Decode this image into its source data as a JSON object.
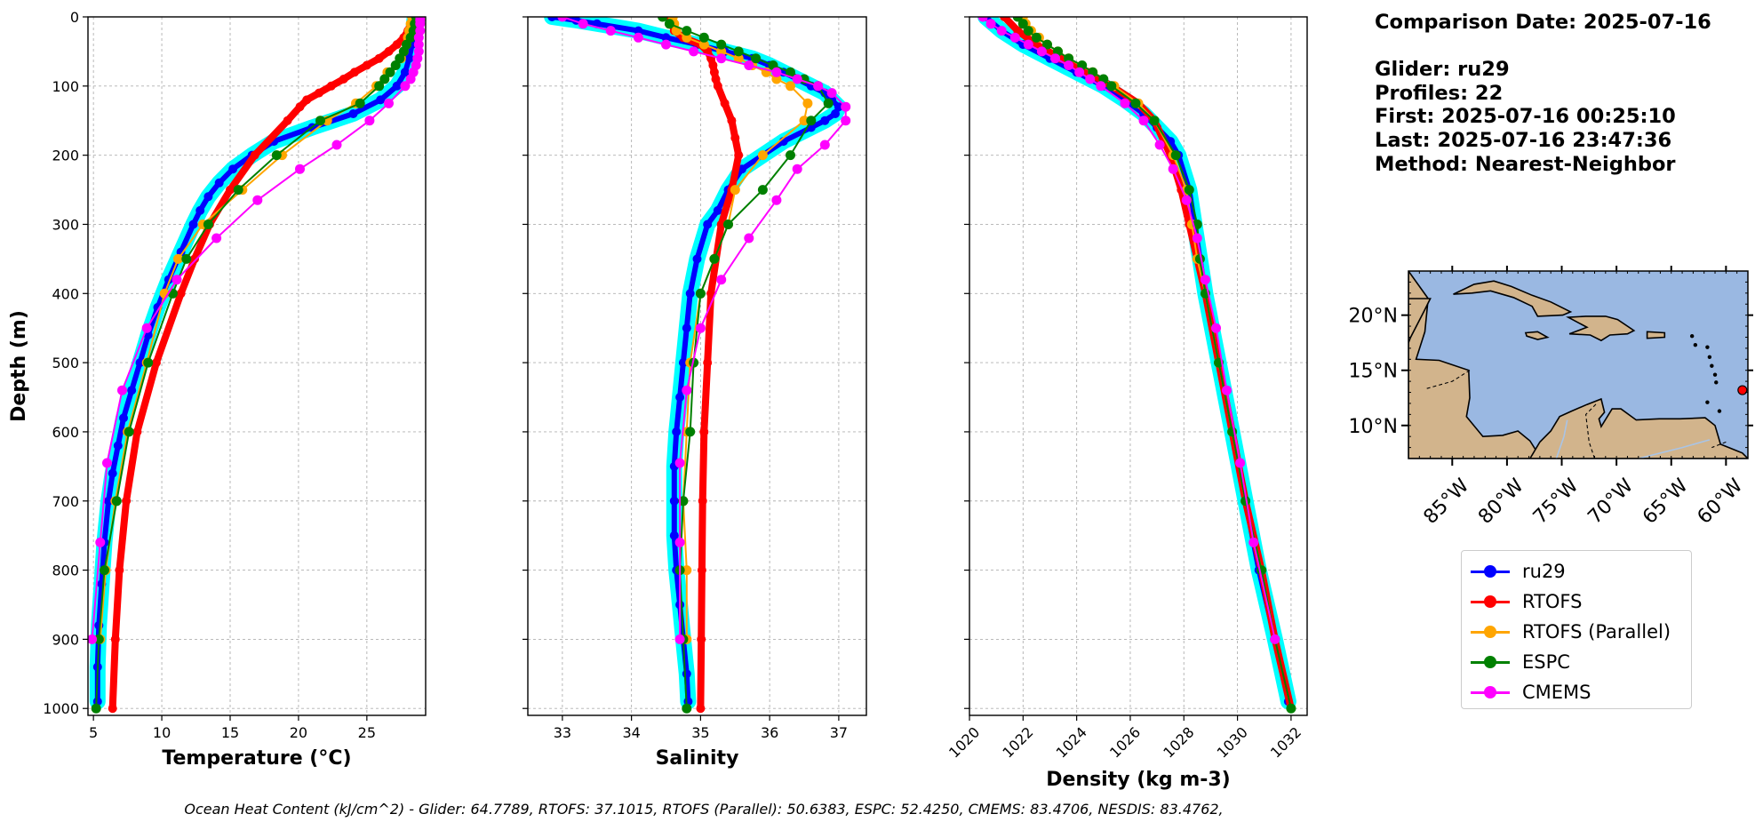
{
  "info": {
    "comparison_date": "Comparison Date: 2025-07-16",
    "glider": "Glider: ru29",
    "profiles": "Profiles: 22",
    "first": "First: 2025-07-16 00:25:10",
    "last": "Last: 2025-07-16 23:47:36",
    "method": "Method: Nearest-Neighbor"
  },
  "footer": "Ocean Heat Content (kJ/cm^2) - Glider: 64.7789,  RTOFS: 37.1015,  RTOFS (Parallel): 50.6383,  ESPC: 52.4250,  CMEMS: 83.4706,  NESDIS: 83.4762,",
  "colors": {
    "ru29": "#0000ff",
    "ru29_spread": "#00ffff",
    "rtofs": "#ff0000",
    "rtofs_parallel": "#ffa500",
    "espc": "#008000",
    "cmems": "#ff00ff",
    "grid": "#b0b0b0",
    "ocean": "#9ab8e2",
    "land": "#d2b48c"
  },
  "legend": [
    {
      "key": "ru29",
      "label": "ru29",
      "color": "#0000ff"
    },
    {
      "key": "rtofs",
      "label": "RTOFS",
      "color": "#ff0000"
    },
    {
      "key": "rtofs_parallel",
      "label": "RTOFS (Parallel)",
      "color": "#ffa500"
    },
    {
      "key": "espc",
      "label": "ESPC",
      "color": "#008000"
    },
    {
      "key": "cmems",
      "label": "CMEMS",
      "color": "#ff00ff"
    }
  ],
  "chart_data": [
    {
      "type": "line",
      "panel": "temperature",
      "xlabel": "Temperature (°C)",
      "ylabel": "Depth (m)",
      "xlim": [
        4.6,
        29.3
      ],
      "ylim": [
        1010,
        0
      ],
      "xticks": [
        5,
        10,
        15,
        20,
        25
      ],
      "yticks": [
        0,
        100,
        200,
        300,
        400,
        500,
        600,
        700,
        800,
        900,
        1000
      ],
      "grid": true,
      "series": [
        {
          "name": "ru29",
          "depth": [
            0,
            20,
            40,
            60,
            80,
            100,
            120,
            140,
            160,
            180,
            200,
            220,
            240,
            260,
            280,
            300,
            340,
            380,
            420,
            460,
            500,
            540,
            580,
            620,
            660,
            700,
            760,
            820,
            880,
            940,
            990
          ],
          "values": [
            28.5,
            28.4,
            28.3,
            28.1,
            27.8,
            27.2,
            26.0,
            24.0,
            21.0,
            18.2,
            16.6,
            15.2,
            14.2,
            13.4,
            12.8,
            12.3,
            11.4,
            10.5,
            9.7,
            9.0,
            8.4,
            7.8,
            7.2,
            6.8,
            6.4,
            6.1,
            5.8,
            5.6,
            5.4,
            5.3,
            5.3
          ]
        },
        {
          "name": "RTOFS",
          "depth": [
            0,
            10,
            20,
            30,
            40,
            50,
            60,
            70,
            80,
            90,
            100,
            110,
            120,
            130,
            150,
            200,
            250,
            300,
            350,
            400,
            500,
            600,
            700,
            800,
            900,
            1000
          ],
          "values": [
            28.3,
            28.2,
            28.0,
            27.7,
            27.2,
            26.6,
            25.9,
            25.0,
            24.1,
            23.3,
            22.4,
            21.5,
            20.6,
            20.1,
            19.2,
            16.8,
            15.0,
            13.5,
            12.4,
            11.4,
            9.6,
            8.2,
            7.4,
            6.9,
            6.6,
            6.4
          ]
        },
        {
          "name": "RTOFS (Parallel)",
          "depth": [
            0,
            10,
            20,
            30,
            40,
            50,
            60,
            80,
            100,
            125,
            150,
            200,
            250,
            300,
            350,
            400,
            500,
            600,
            700,
            800,
            900
          ],
          "values": [
            28.3,
            28.2,
            28.1,
            28.0,
            27.9,
            27.7,
            27.5,
            26.5,
            25.7,
            24.2,
            22.1,
            18.8,
            15.9,
            13.0,
            11.2,
            10.2,
            8.9,
            7.5,
            6.6,
            5.9,
            5.5
          ]
        },
        {
          "name": "ESPC",
          "depth": [
            0,
            10,
            20,
            30,
            40,
            50,
            60,
            70,
            80,
            90,
            100,
            125,
            150,
            200,
            250,
            300,
            350,
            400,
            500,
            600,
            700,
            800,
            900,
            1000
          ],
          "values": [
            28.6,
            28.5,
            28.4,
            28.2,
            27.9,
            27.7,
            27.4,
            27.1,
            26.7,
            26.3,
            25.9,
            24.5,
            21.6,
            18.4,
            15.6,
            13.4,
            11.8,
            10.8,
            9.0,
            7.6,
            6.7,
            5.8,
            5.4,
            5.2
          ]
        },
        {
          "name": "CMEMS",
          "depth": [
            0,
            5,
            10,
            20,
            30,
            40,
            50,
            60,
            70,
            80,
            90,
            100,
            125,
            150,
            185,
            220,
            265,
            320,
            380,
            450,
            540,
            645,
            760,
            900
          ],
          "values": [
            28.9,
            28.9,
            28.9,
            28.9,
            28.8,
            28.8,
            28.8,
            28.7,
            28.6,
            28.4,
            28.2,
            27.8,
            26.6,
            25.2,
            22.8,
            20.1,
            17.0,
            14.0,
            11.1,
            8.9,
            7.1,
            6.0,
            5.5,
            4.9
          ]
        }
      ]
    },
    {
      "type": "line",
      "panel": "salinity",
      "xlabel": "Salinity",
      "ylabel": "",
      "xlim": [
        32.5,
        37.4
      ],
      "ylim": [
        1010,
        0
      ],
      "xticks": [
        33,
        34,
        35,
        36,
        37
      ],
      "yticks": [
        0,
        100,
        200,
        300,
        400,
        500,
        600,
        700,
        800,
        900,
        1000
      ],
      "grid": true,
      "series": [
        {
          "name": "ru29",
          "depth": [
            0,
            5,
            10,
            20,
            30,
            40,
            50,
            60,
            70,
            80,
            90,
            100,
            110,
            120,
            130,
            140,
            150,
            160,
            180,
            200,
            220,
            250,
            280,
            300,
            350,
            400,
            450,
            500,
            550,
            600,
            650,
            700,
            750,
            800,
            850,
            900,
            950,
            990
          ],
          "values": [
            32.85,
            33.2,
            33.5,
            34.1,
            34.5,
            34.95,
            35.35,
            35.75,
            36.0,
            36.2,
            36.4,
            36.6,
            36.8,
            36.9,
            37.0,
            36.95,
            36.8,
            36.6,
            36.2,
            35.9,
            35.6,
            35.4,
            35.25,
            35.1,
            34.95,
            34.85,
            34.8,
            34.75,
            34.7,
            34.65,
            34.62,
            34.62,
            34.62,
            34.65,
            34.7,
            34.75,
            34.8,
            34.82
          ]
        },
        {
          "name": "RTOFS",
          "depth": [
            0,
            10,
            20,
            30,
            40,
            50,
            60,
            70,
            80,
            90,
            100,
            125,
            150,
            175,
            200,
            250,
            300,
            400,
            500,
            600,
            700,
            800,
            900,
            1000
          ],
          "values": [
            34.55,
            34.58,
            34.62,
            34.75,
            35.0,
            35.1,
            35.15,
            35.18,
            35.2,
            35.22,
            35.25,
            35.35,
            35.45,
            35.5,
            35.55,
            35.45,
            35.3,
            35.15,
            35.1,
            35.05,
            35.03,
            35.02,
            35.01,
            35.0
          ]
        },
        {
          "name": "RTOFS (Parallel)",
          "depth": [
            0,
            10,
            20,
            30,
            40,
            50,
            60,
            70,
            80,
            90,
            100,
            125,
            150,
            200,
            250,
            300,
            350,
            400,
            500,
            600,
            700,
            800,
            900
          ],
          "values": [
            34.6,
            34.62,
            34.65,
            34.8,
            35.05,
            35.3,
            35.55,
            35.75,
            35.95,
            36.1,
            36.3,
            36.55,
            36.5,
            35.9,
            35.5,
            35.4,
            35.2,
            35.0,
            34.85,
            34.8,
            34.75,
            34.8,
            34.8
          ]
        },
        {
          "name": "ESPC",
          "depth": [
            0,
            10,
            20,
            30,
            40,
            50,
            60,
            70,
            80,
            90,
            100,
            125,
            150,
            200,
            250,
            300,
            350,
            400,
            500,
            600,
            700,
            800,
            900,
            1000
          ],
          "values": [
            34.45,
            34.55,
            34.8,
            35.05,
            35.3,
            35.55,
            35.8,
            36.05,
            36.3,
            36.5,
            36.7,
            36.85,
            36.6,
            36.3,
            35.9,
            35.4,
            35.2,
            35.0,
            34.9,
            34.85,
            34.75,
            34.7,
            34.75,
            34.8
          ]
        },
        {
          "name": "CMEMS",
          "depth": [
            0,
            10,
            20,
            30,
            40,
            50,
            60,
            70,
            80,
            90,
            100,
            110,
            130,
            150,
            185,
            220,
            265,
            320,
            380,
            450,
            540,
            645,
            760,
            900
          ],
          "values": [
            33.0,
            33.3,
            33.7,
            34.1,
            34.5,
            34.9,
            35.3,
            35.7,
            36.1,
            36.4,
            36.7,
            36.9,
            37.1,
            37.1,
            36.8,
            36.4,
            36.1,
            35.7,
            35.3,
            35.0,
            34.8,
            34.7,
            34.7,
            34.7
          ]
        }
      ]
    },
    {
      "type": "line",
      "panel": "density",
      "xlabel": "Density (kg m-3)",
      "ylabel": "",
      "xlim": [
        1020.0,
        1032.6
      ],
      "ylim": [
        1010,
        0
      ],
      "xticks": [
        1020,
        1022,
        1024,
        1026,
        1028,
        1030,
        1032
      ],
      "yticks": [
        0,
        100,
        200,
        300,
        400,
        500,
        600,
        700,
        800,
        900,
        1000
      ],
      "grid": true,
      "series": [
        {
          "name": "ru29",
          "depth": [
            0,
            20,
            40,
            60,
            80,
            100,
            120,
            140,
            160,
            180,
            200,
            250,
            300,
            350,
            400,
            500,
            600,
            700,
            800,
            900,
            990
          ],
          "values": [
            1020.6,
            1021.2,
            1022.0,
            1023.0,
            1024.0,
            1025.0,
            1025.8,
            1026.5,
            1027.0,
            1027.5,
            1027.8,
            1028.2,
            1028.4,
            1028.6,
            1028.8,
            1029.3,
            1029.8,
            1030.3,
            1030.8,
            1031.4,
            1031.9
          ]
        },
        {
          "name": "RTOFS",
          "depth": [
            0,
            20,
            40,
            60,
            80,
            100,
            125,
            150,
            200,
            250,
            300,
            400,
            500,
            600,
            700,
            800,
            900,
            1000
          ],
          "values": [
            1021.3,
            1021.8,
            1022.5,
            1023.4,
            1024.4,
            1025.3,
            1026.3,
            1026.9,
            1027.5,
            1027.9,
            1028.2,
            1028.8,
            1029.3,
            1029.8,
            1030.3,
            1030.9,
            1031.4,
            1032.0
          ]
        },
        {
          "name": "RTOFS (Parallel)",
          "depth": [
            0,
            10,
            20,
            30,
            40,
            50,
            60,
            80,
            100,
            125,
            150,
            200,
            250,
            300,
            350,
            400,
            500,
            600,
            700,
            800,
            900
          ],
          "values": [
            1022.0,
            1022.1,
            1022.3,
            1022.6,
            1022.9,
            1023.3,
            1023.7,
            1024.6,
            1025.4,
            1026.3,
            1026.9,
            1027.6,
            1028.1,
            1028.3,
            1028.5,
            1028.8,
            1029.3,
            1029.8,
            1030.3,
            1030.9,
            1031.4
          ]
        },
        {
          "name": "ESPC",
          "depth": [
            0,
            10,
            20,
            30,
            40,
            50,
            60,
            70,
            80,
            90,
            100,
            125,
            150,
            200,
            250,
            300,
            350,
            400,
            500,
            600,
            700,
            800,
            900,
            1000
          ],
          "values": [
            1021.8,
            1022.0,
            1022.2,
            1022.5,
            1022.9,
            1023.3,
            1023.7,
            1024.2,
            1024.6,
            1025.0,
            1025.3,
            1026.2,
            1026.9,
            1027.7,
            1028.2,
            1028.5,
            1028.6,
            1028.8,
            1029.3,
            1029.8,
            1030.3,
            1030.9,
            1031.4,
            1032.0
          ]
        },
        {
          "name": "CMEMS",
          "depth": [
            0,
            10,
            20,
            30,
            40,
            50,
            60,
            70,
            80,
            90,
            100,
            125,
            150,
            185,
            220,
            265,
            320,
            380,
            450,
            540,
            645,
            760,
            900
          ],
          "values": [
            1020.5,
            1020.8,
            1021.2,
            1021.7,
            1022.2,
            1022.7,
            1023.2,
            1023.7,
            1024.1,
            1024.5,
            1024.9,
            1025.8,
            1026.5,
            1027.1,
            1027.6,
            1028.1,
            1028.5,
            1028.8,
            1029.2,
            1029.6,
            1030.1,
            1030.6,
            1031.4
          ]
        }
      ]
    },
    {
      "type": "map",
      "panel": "location",
      "lon_range": [
        -89,
        -58
      ],
      "lat_range": [
        7,
        24
      ],
      "xticks": [
        -85,
        -80,
        -75,
        -70,
        -65,
        -60
      ],
      "xtick_labels": [
        "85°W",
        "80°W",
        "75°W",
        "70°W",
        "65°W",
        "60°W"
      ],
      "yticks": [
        10,
        15,
        20
      ],
      "ytick_labels": [
        "10°N",
        "15°N",
        "20°N"
      ],
      "glider_position": {
        "lon": -58.5,
        "lat": 13.2
      }
    }
  ]
}
